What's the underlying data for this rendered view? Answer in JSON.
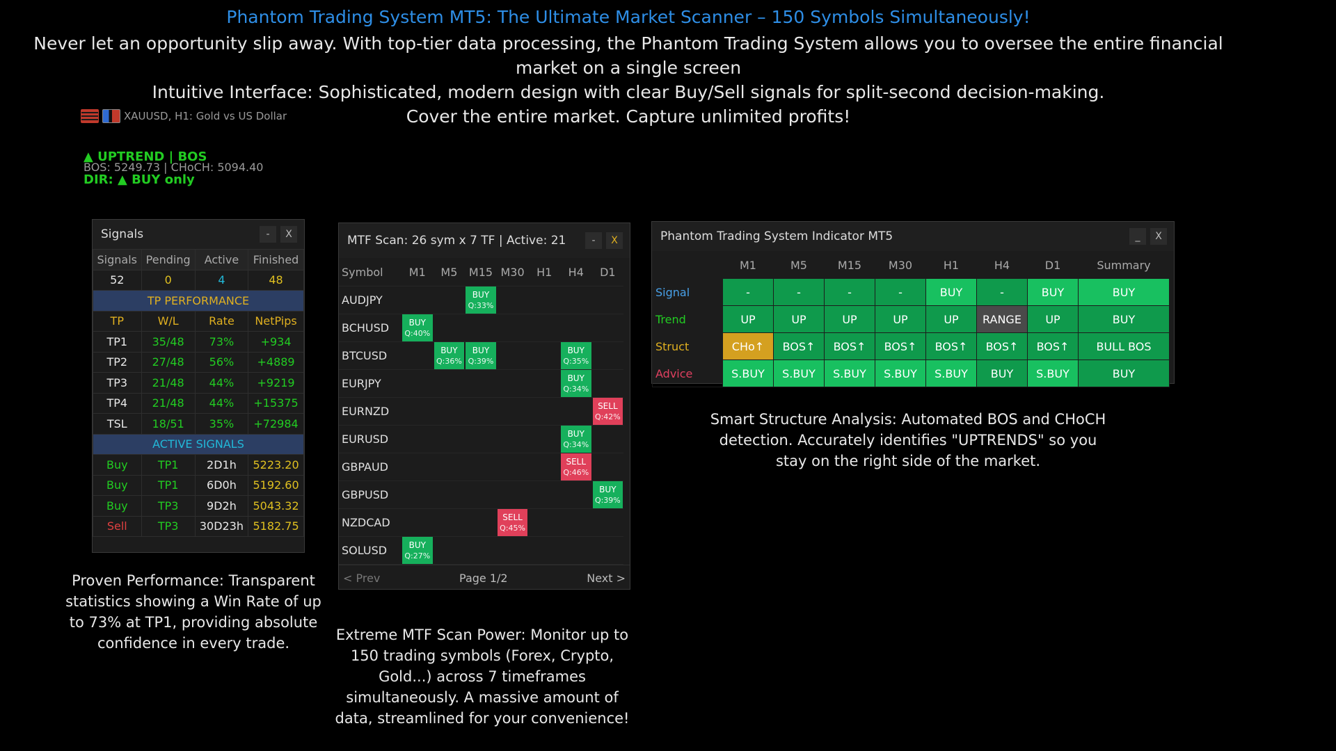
{
  "header": {
    "title": "Phantom Trading System MT5: The Ultimate Market Scanner – 150 Symbols Simultaneously!",
    "line1": "Never let an opportunity slip away. With top-tier data processing, the Phantom Trading System allows you to oversee the entire financial",
    "line2": "market on a single screen",
    "line3": "Intuitive Interface: Sophisticated, modern design with clear Buy/Sell signals for split-second decision-making.",
    "line4": "Cover the entire market. Capture unlimited profits!"
  },
  "chart": {
    "symbol_text": "XAUUSD, H1:  Gold vs US Dollar",
    "uptrend": "▲ UPTREND | BOS",
    "bos_line": "BOS: 5249.73  |  CHoCH: 5094.40",
    "dir": "DIR: ▲ BUY only",
    "icons": [
      "grid-icon",
      "bars-icon"
    ]
  },
  "signals": {
    "title": "Signals",
    "min": "-",
    "close": "X",
    "headers": [
      "Signals",
      "Pending",
      "Active",
      "Finished"
    ],
    "counts": [
      "52",
      "0",
      "4",
      "48"
    ],
    "tp_section": "TP PERFORMANCE",
    "tp_headers": [
      "TP",
      "W/L",
      "Rate",
      "NetPips"
    ],
    "tp_rows": [
      [
        "TP1",
        "35/48",
        "73%",
        "+934"
      ],
      [
        "TP2",
        "27/48",
        "56%",
        "+4889"
      ],
      [
        "TP3",
        "21/48",
        "44%",
        "+9219"
      ],
      [
        "TP4",
        "21/48",
        "44%",
        "+15375"
      ],
      [
        "TSL",
        "18/51",
        "35%",
        "+72984"
      ]
    ],
    "active_section": "ACTIVE SIGNALS",
    "active_rows": [
      [
        "Buy",
        "TP1",
        "2D1h",
        "5223.20"
      ],
      [
        "Buy",
        "TP1",
        "6D0h",
        "5192.60"
      ],
      [
        "Buy",
        "TP3",
        "9D2h",
        "5043.32"
      ],
      [
        "Sell",
        "TP3",
        "30D23h",
        "5182.75"
      ]
    ]
  },
  "mtf": {
    "title": "MTF Scan: 26 sym x 7 TF | Active: 21",
    "min": "-",
    "close": "X",
    "headers": [
      "Symbol",
      "M1",
      "M5",
      "M15",
      "M30",
      "H1",
      "H4",
      "D1"
    ],
    "rows": [
      {
        "sym": "AUDJPY",
        "cells": [
          null,
          null,
          {
            "t": "BUY",
            "q": "Q:33%"
          },
          null,
          null,
          null,
          null
        ]
      },
      {
        "sym": "BCHUSD",
        "cells": [
          {
            "t": "BUY",
            "q": "Q:40%"
          },
          null,
          null,
          null,
          null,
          null,
          null
        ]
      },
      {
        "sym": "BTCUSD",
        "cells": [
          null,
          {
            "t": "BUY",
            "q": "Q:36%"
          },
          {
            "t": "BUY",
            "q": "Q:39%"
          },
          null,
          null,
          {
            "t": "BUY",
            "q": "Q:35%"
          },
          null
        ]
      },
      {
        "sym": "EURJPY",
        "cells": [
          null,
          null,
          null,
          null,
          null,
          {
            "t": "BUY",
            "q": "Q:34%"
          },
          null
        ]
      },
      {
        "sym": "EURNZD",
        "cells": [
          null,
          null,
          null,
          null,
          null,
          null,
          {
            "t": "SELL",
            "q": "Q:42%"
          }
        ]
      },
      {
        "sym": "EURUSD",
        "cells": [
          null,
          null,
          null,
          null,
          null,
          {
            "t": "BUY",
            "q": "Q:34%"
          },
          null
        ]
      },
      {
        "sym": "GBPAUD",
        "cells": [
          null,
          null,
          null,
          null,
          null,
          {
            "t": "SELL",
            "q": "Q:46%"
          },
          null
        ]
      },
      {
        "sym": "GBPUSD",
        "cells": [
          null,
          null,
          null,
          null,
          null,
          null,
          {
            "t": "BUY",
            "q": "Q:39%"
          }
        ]
      },
      {
        "sym": "NZDCAD",
        "cells": [
          null,
          null,
          null,
          {
            "t": "SELL",
            "q": "Q:45%"
          },
          null,
          null,
          null
        ]
      },
      {
        "sym": "SOLUSD",
        "cells": [
          {
            "t": "BUY",
            "q": "Q:27%"
          },
          null,
          null,
          null,
          null,
          null,
          null
        ]
      }
    ],
    "prev": "< Prev",
    "page": "Page 1/2",
    "next": "Next >"
  },
  "indicator": {
    "title": "Phantom Trading System Indicator MT5",
    "min": "_",
    "close": "X",
    "headers": [
      "",
      "M1",
      "M5",
      "M15",
      "M30",
      "H1",
      "H4",
      "D1",
      "Summary"
    ],
    "rows": [
      {
        "label": "Signal",
        "cls": "sig",
        "cells": [
          "-",
          "-",
          "-",
          "-",
          "BUY",
          "-",
          "BUY",
          "BUY"
        ],
        "styles": [
          "ig",
          "ig",
          "ig",
          "ig",
          "ibright",
          "ig",
          "ibright",
          "ibright"
        ]
      },
      {
        "label": "Trend",
        "cls": "tr",
        "cells": [
          "UP",
          "UP",
          "UP",
          "UP",
          "UP",
          "RANGE",
          "UP",
          "BUY"
        ],
        "styles": [
          "ig",
          "ig",
          "ig",
          "ig",
          "ig",
          "igray",
          "ig",
          "ig"
        ]
      },
      {
        "label": "Struct",
        "cls": "st",
        "cells": [
          "CHo↑",
          "BOS↑",
          "BOS↑",
          "BOS↑",
          "BOS↑",
          "BOS↑",
          "BOS↑",
          "BULL BOS"
        ],
        "styles": [
          "iorange",
          "ig",
          "ig",
          "ig",
          "ig",
          "ig",
          "ig",
          "ig"
        ]
      },
      {
        "label": "Advice",
        "cls": "ad",
        "cells": [
          "S.BUY",
          "S.BUY",
          "S.BUY",
          "S.BUY",
          "S.BUY",
          "BUY",
          "S.BUY",
          "BUY"
        ],
        "styles": [
          "ibright",
          "ibright",
          "ibright",
          "ibright",
          "ibright",
          "ig",
          "ibright",
          "ig"
        ]
      }
    ]
  },
  "captions": {
    "perf": "Proven Performance: Transparent statistics showing a Win Rate of up to 73% at TP1, providing absolute confidence in every trade.",
    "mtf": "Extreme MTF Scan Power: Monitor up to 150 trading symbols (Forex, Crypto, Gold...) across 7 timeframes simultaneously. A massive amount of data, streamlined for your convenience!",
    "smart": "Smart Structure Analysis: Automated BOS and CHoCH detection. Accurately identifies \"UPTRENDS\" so you stay on the right side of the market."
  }
}
